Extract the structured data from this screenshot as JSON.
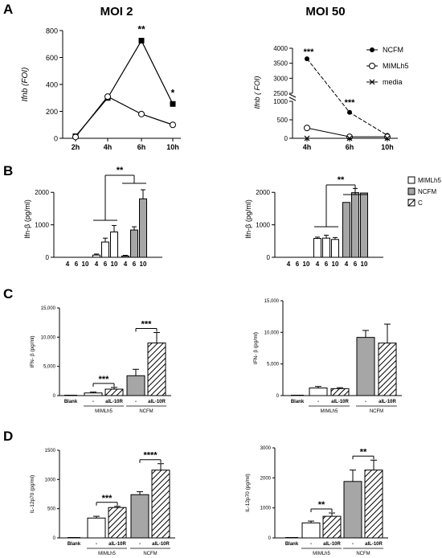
{
  "panel_letters": [
    "A",
    "B",
    "C",
    "D"
  ],
  "column_titles": [
    "MOI 2",
    "MOI 50"
  ],
  "chart_data": [
    {
      "id": "A-left",
      "type": "line",
      "title": "",
      "xlabel": "",
      "ylabel": "Ifnb (FOI)",
      "categories": [
        "2h",
        "4h",
        "6h",
        "10h"
      ],
      "ylim": [
        0,
        800
      ],
      "yticks": [
        0,
        200,
        400,
        600,
        800
      ],
      "series": [
        {
          "values": [
            15,
            300,
            725,
            255
          ],
          "marker": "square"
        },
        {
          "values": [
            10,
            310,
            180,
            100
          ],
          "marker": "open-circle"
        }
      ],
      "annotations": [
        {
          "x": "6h",
          "text": "**"
        },
        {
          "x": "10h",
          "text": "*"
        }
      ]
    },
    {
      "id": "A-right",
      "type": "line",
      "title": "",
      "xlabel": "",
      "ylabel": "Ifnb ( FOI)",
      "categories": [
        "4h",
        "6h",
        "10h"
      ],
      "ylim": [
        0,
        4000
      ],
      "axis_break": [
        1000,
        2500
      ],
      "yticks": [
        0,
        500,
        1000,
        2500,
        3000,
        3500,
        4000
      ],
      "series": [
        {
          "name": "NCFM",
          "values": [
            3650,
            700,
            80
          ],
          "marker": "filled-circle"
        },
        {
          "name": "MIMLh5",
          "values": [
            280,
            40,
            40
          ],
          "marker": "open-circle"
        },
        {
          "name": "media",
          "values": [
            0,
            0,
            0
          ],
          "marker": "x"
        }
      ],
      "legend": "right",
      "annotations": [
        {
          "x": "4h",
          "text": "***"
        },
        {
          "x": "6h",
          "text": "***"
        }
      ]
    },
    {
      "id": "B-left",
      "type": "bar",
      "title": "",
      "xlabel": "",
      "ylabel": "Ifn-β (pg/ml)",
      "ylim": [
        0,
        2600
      ],
      "yticks": [
        0,
        1000,
        2000
      ],
      "groups": [
        {
          "labels": [
            "4",
            "6",
            "10"
          ],
          "style": "white",
          "values": [
            0,
            0,
            0
          ],
          "errors": [
            0,
            0,
            0
          ]
        },
        {
          "labels": [
            "4",
            "6",
            "10"
          ],
          "style": "white",
          "values": [
            70,
            470,
            780
          ],
          "errors": [
            30,
            120,
            200
          ]
        },
        {
          "labels": [
            "4",
            "6",
            "10"
          ],
          "style": "gray",
          "values": [
            40,
            840,
            1800
          ],
          "errors": [
            20,
            100,
            280
          ]
        }
      ],
      "annotations": [
        {
          "text": "**"
        }
      ]
    },
    {
      "id": "B-right",
      "type": "bar",
      "title": "",
      "xlabel": "",
      "ylabel": "Ifn-β (pg/ml)",
      "ylim": [
        0,
        2600
      ],
      "yticks": [
        0,
        1000,
        2000
      ],
      "groups": [
        {
          "labels": [
            "4",
            "6",
            "10"
          ],
          "style": "white",
          "values": [
            0,
            0,
            0
          ],
          "errors": [
            0,
            0,
            0
          ]
        },
        {
          "labels": [
            "4",
            "6",
            "10"
          ],
          "style": "white",
          "values": [
            580,
            590,
            550
          ],
          "errors": [
            40,
            90,
            60
          ]
        },
        {
          "labels": [
            "4",
            "6",
            "10"
          ],
          "style": "gray",
          "values": [
            1690,
            1990,
            1980
          ],
          "errors": [
            0,
            130,
            0
          ]
        }
      ],
      "legend": {
        "position": "right",
        "entries": [
          {
            "name": "MIMLh5",
            "style": "white"
          },
          {
            "name": "NCFM",
            "style": "gray"
          },
          {
            "name": "C",
            "style": "hatch"
          }
        ]
      },
      "annotations": [
        {
          "text": "**"
        }
      ]
    },
    {
      "id": "C-left",
      "type": "bar",
      "title": "",
      "xlabel": "",
      "ylabel": "IFN- β (pg/ml)",
      "ylim": [
        0,
        15000
      ],
      "yticks": [
        0,
        5000,
        10000,
        15000
      ],
      "ytick_labels": [
        "0",
        "5,000",
        "10,000",
        "15,000"
      ],
      "categories": [
        "Blank",
        "-",
        "aIL-10R",
        "-",
        "aIL-10R"
      ],
      "values": [
        0,
        450,
        1100,
        3400,
        9000
      ],
      "errors": [
        0,
        150,
        300,
        1100,
        1800
      ],
      "styles": [
        "white",
        "white",
        "hatch",
        "gray",
        "hatch"
      ],
      "group_labels": [
        {
          "text": "MIMLh5",
          "span": [
            1,
            2
          ]
        },
        {
          "text": "NCFM",
          "span": [
            3,
            4
          ]
        }
      ],
      "annotations": [
        {
          "span": [
            1,
            2
          ],
          "text": "***"
        },
        {
          "span": [
            3,
            4
          ],
          "text": "***"
        }
      ]
    },
    {
      "id": "C-right",
      "type": "bar",
      "title": "",
      "xlabel": "",
      "ylabel": "IFN- β (pg/ml)",
      "ylim": [
        0,
        15000
      ],
      "yticks": [
        0,
        5000,
        10000,
        15000
      ],
      "ytick_labels": [
        "0",
        "5,000",
        "10,000",
        "15,000"
      ],
      "categories": [
        "Blank",
        "-",
        "aIL-10R",
        "-",
        "aIL-10R"
      ],
      "values": [
        0,
        1200,
        1100,
        9200,
        8300
      ],
      "errors": [
        0,
        250,
        150,
        1100,
        3000
      ],
      "styles": [
        "white",
        "white",
        "hatch",
        "gray",
        "hatch"
      ],
      "group_labels": [
        {
          "text": "MIMLh5",
          "span": [
            1,
            2
          ]
        },
        {
          "text": "NCFM",
          "span": [
            3,
            4
          ]
        }
      ],
      "annotations": []
    },
    {
      "id": "D-left",
      "type": "bar",
      "title": "",
      "xlabel": "",
      "ylabel": "IL-12p70 (pg/ml)",
      "ylim": [
        0,
        1500
      ],
      "yticks": [
        0,
        500,
        1000,
        1500
      ],
      "ytick_labels": [
        "0",
        "500",
        "1000",
        "1500"
      ],
      "categories": [
        "Blank",
        "-",
        "aIL-10R",
        "-",
        "aIL-10R"
      ],
      "values": [
        0,
        340,
        520,
        740,
        1160
      ],
      "errors": [
        0,
        30,
        20,
        50,
        110
      ],
      "styles": [
        "white",
        "white",
        "hatch",
        "gray",
        "hatch"
      ],
      "group_labels": [
        {
          "text": "MIMLh5",
          "span": [
            1,
            2
          ]
        },
        {
          "text": "NCFM",
          "span": [
            3,
            4
          ]
        }
      ],
      "annotations": [
        {
          "span": [
            1,
            2
          ],
          "text": "***"
        },
        {
          "span": [
            3,
            4
          ],
          "text": "****"
        }
      ]
    },
    {
      "id": "D-right",
      "type": "bar",
      "title": "",
      "xlabel": "",
      "ylabel": "IL-12p70 (pg/ml)",
      "ylim": [
        0,
        3000
      ],
      "yticks": [
        0,
        1000,
        2000,
        3000
      ],
      "ytick_labels": [
        "0",
        "1000",
        "2000",
        "3000"
      ],
      "categories": [
        "Blank",
        "-",
        "aIL-10R",
        "-",
        "aIL-10R"
      ],
      "values": [
        0,
        500,
        720,
        1880,
        2260
      ],
      "errors": [
        0,
        60,
        110,
        380,
        330
      ],
      "styles": [
        "white",
        "white",
        "hatch",
        "gray",
        "hatch"
      ],
      "group_labels": [
        {
          "text": "MIMLh5",
          "span": [
            1,
            2
          ]
        },
        {
          "text": "NCFM",
          "span": [
            3,
            4
          ]
        }
      ],
      "annotations": [
        {
          "span": [
            1,
            2
          ],
          "text": "**"
        },
        {
          "span": [
            3,
            4
          ],
          "text": "**"
        }
      ]
    }
  ]
}
